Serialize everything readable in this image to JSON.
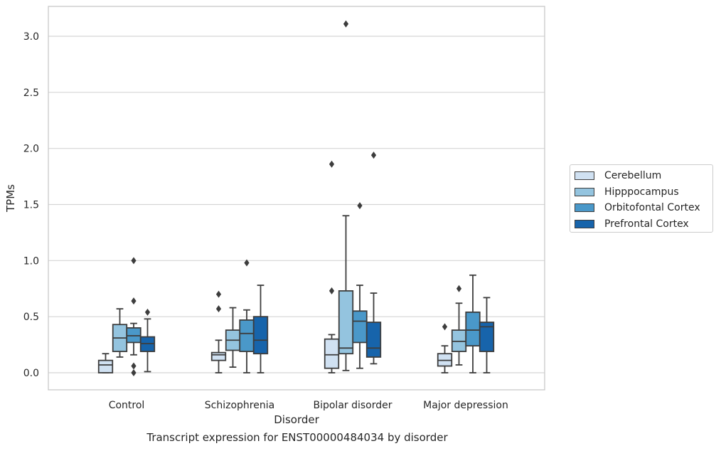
{
  "chart_data": {
    "type": "box",
    "xlabel": "Disorder",
    "ylabel": "TPMs",
    "ylim": [
      -0.15,
      3.27
    ],
    "yticks": [
      "0.0",
      "0.5",
      "1.0",
      "1.5",
      "2.0",
      "2.5",
      "3.0"
    ],
    "ytick_values": [
      0,
      0.5,
      1.0,
      1.5,
      2.0,
      2.5,
      3.0
    ],
    "grid": "horizontal",
    "legend_position": "right",
    "categories": [
      "Control",
      "Schizophrenia",
      "Bipolar disorder",
      "Major depression"
    ],
    "series": [
      {
        "name": "Cerebellum",
        "color": "#d0e1f2",
        "boxes": [
          {
            "whislo": 0.0,
            "q1": 0.0,
            "med": 0.07,
            "q3": 0.11,
            "whishi": 0.17,
            "fliers": []
          },
          {
            "whislo": 0.0,
            "q1": 0.11,
            "med": 0.16,
            "q3": 0.18,
            "whishi": 0.29,
            "fliers": [
              0.57,
              0.7
            ]
          },
          {
            "whislo": 0.0,
            "q1": 0.04,
            "med": 0.16,
            "q3": 0.3,
            "whishi": 0.34,
            "fliers": [
              0.73,
              1.86
            ]
          },
          {
            "whislo": 0.0,
            "q1": 0.06,
            "med": 0.11,
            "q3": 0.17,
            "whishi": 0.24,
            "fliers": [
              0.41
            ]
          }
        ]
      },
      {
        "name": "Hipppocampus",
        "color": "#94c4df",
        "boxes": [
          {
            "whislo": 0.14,
            "q1": 0.19,
            "med": 0.31,
            "q3": 0.43,
            "whishi": 0.57,
            "fliers": []
          },
          {
            "whislo": 0.05,
            "q1": 0.2,
            "med": 0.29,
            "q3": 0.38,
            "whishi": 0.58,
            "fliers": []
          },
          {
            "whislo": 0.02,
            "q1": 0.17,
            "med": 0.22,
            "q3": 0.73,
            "whishi": 1.4,
            "fliers": [
              3.11
            ]
          },
          {
            "whislo": 0.07,
            "q1": 0.19,
            "med": 0.28,
            "q3": 0.38,
            "whishi": 0.62,
            "fliers": [
              0.75
            ]
          }
        ]
      },
      {
        "name": "Orbitofontal Cortex",
        "color": "#4a98c9",
        "boxes": [
          {
            "whislo": 0.16,
            "q1": 0.27,
            "med": 0.33,
            "q3": 0.4,
            "whishi": 0.44,
            "fliers": [
              0.0,
              0.06,
              0.64,
              1.0
            ]
          },
          {
            "whislo": 0.0,
            "q1": 0.19,
            "med": 0.35,
            "q3": 0.47,
            "whishi": 0.56,
            "fliers": [
              0.98
            ]
          },
          {
            "whislo": 0.04,
            "q1": 0.27,
            "med": 0.46,
            "q3": 0.55,
            "whishi": 0.78,
            "fliers": [
              1.49
            ]
          },
          {
            "whislo": 0.0,
            "q1": 0.24,
            "med": 0.38,
            "q3": 0.54,
            "whishi": 0.87,
            "fliers": []
          }
        ]
      },
      {
        "name": "Prefrontal Cortex",
        "color": "#1764ab",
        "boxes": [
          {
            "whislo": 0.01,
            "q1": 0.19,
            "med": 0.26,
            "q3": 0.32,
            "whishi": 0.48,
            "fliers": [
              0.54
            ]
          },
          {
            "whislo": 0.0,
            "q1": 0.17,
            "med": 0.29,
            "q3": 0.5,
            "whishi": 0.78,
            "fliers": []
          },
          {
            "whislo": 0.08,
            "q1": 0.14,
            "med": 0.22,
            "q3": 0.45,
            "whishi": 0.71,
            "fliers": [
              1.94
            ]
          },
          {
            "whislo": 0.0,
            "q1": 0.19,
            "med": 0.41,
            "q3": 0.45,
            "whishi": 0.67,
            "fliers": []
          }
        ]
      }
    ]
  },
  "caption": "Transcript expression for ENST00000484034 by disorder"
}
